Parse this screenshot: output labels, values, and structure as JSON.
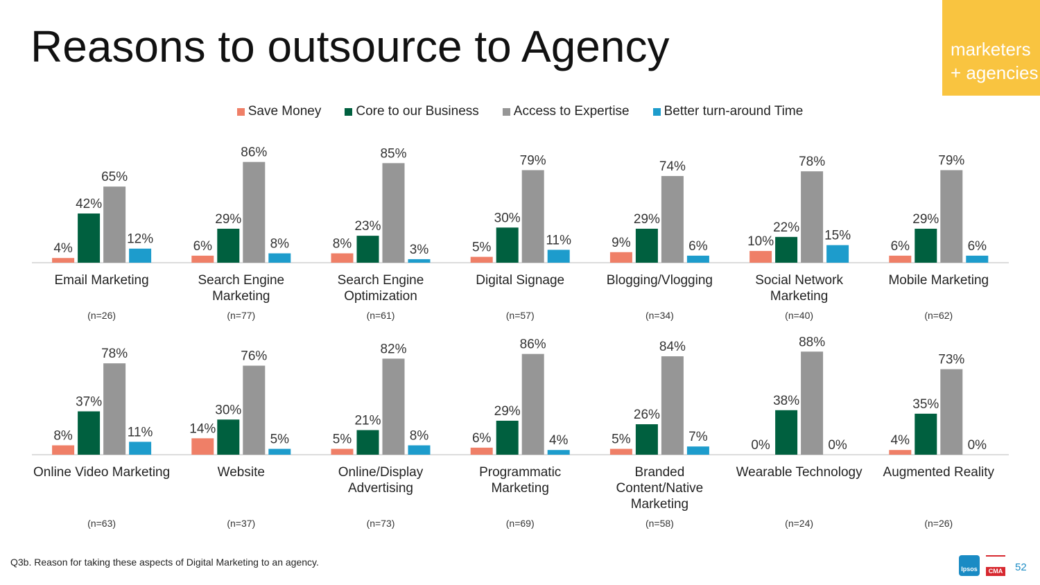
{
  "title": "Reasons to outsource to Agency",
  "badge": {
    "line1": "marketers",
    "line2": "+ agencies"
  },
  "legend": [
    {
      "label": "Save Money",
      "color": "#ef7f67"
    },
    {
      "label": "Core to our Business",
      "color": "#00603f"
    },
    {
      "label": "Access to Expertise",
      "color": "#969696"
    },
    {
      "label": "Better turn-around Time",
      "color": "#1d9ccc"
    }
  ],
  "chart_data": [
    {
      "type": "bar",
      "categories": [
        [
          "Email Marketing"
        ],
        [
          "Search Engine",
          "Marketing"
        ],
        [
          "Search Engine",
          "Optimization"
        ],
        [
          "Digital Signage"
        ],
        [
          "Blogging/Vlogging"
        ],
        [
          "Social Network",
          "Marketing"
        ],
        [
          "Mobile Marketing"
        ]
      ],
      "sample_sizes": [
        "(n=26)",
        "(n=77)",
        "(n=61)",
        "(n=57)",
        "(n=34)",
        "(n=40)",
        "(n=62)"
      ],
      "series": [
        {
          "name": "Save Money",
          "values": [
            4,
            6,
            8,
            5,
            9,
            10,
            6
          ]
        },
        {
          "name": "Core to our Business",
          "values": [
            42,
            29,
            23,
            30,
            29,
            22,
            29
          ]
        },
        {
          "name": "Access to Expertise",
          "values": [
            65,
            86,
            85,
            79,
            74,
            78,
            79
          ]
        },
        {
          "name": "Better turn-around Time",
          "values": [
            12,
            8,
            3,
            11,
            6,
            15,
            6
          ]
        }
      ],
      "unit": "%",
      "ylim": [
        0,
        100
      ]
    },
    {
      "type": "bar",
      "categories": [
        [
          "Online Video Marketing"
        ],
        [
          "Website"
        ],
        [
          "Online/Display",
          "Advertising"
        ],
        [
          "Programmatic",
          "Marketing"
        ],
        [
          "Branded",
          "Content/Native",
          "Marketing"
        ],
        [
          "Wearable Technology"
        ],
        [
          "Augmented Reality"
        ]
      ],
      "sample_sizes": [
        "(n=63)",
        "(n=37)",
        "(n=73)",
        "(n=69)",
        "(n=58)",
        "(n=24)",
        "(n=26)"
      ],
      "series": [
        {
          "name": "Save Money",
          "values": [
            8,
            14,
            5,
            6,
            5,
            0,
            4
          ]
        },
        {
          "name": "Core to our Business",
          "values": [
            37,
            30,
            21,
            29,
            26,
            38,
            35
          ]
        },
        {
          "name": "Access to Expertise",
          "values": [
            78,
            76,
            82,
            86,
            84,
            88,
            73
          ]
        },
        {
          "name": "Better turn-around Time",
          "values": [
            11,
            5,
            8,
            4,
            7,
            0,
            0
          ]
        }
      ],
      "unit": "%",
      "ylim": [
        0,
        100
      ]
    }
  ],
  "footnote": "Q3b. Reason for taking these aspects of Digital Marketing to an agency.",
  "logos": {
    "ipsos": "Ipsos",
    "cma": "CMA"
  },
  "page_number": "52"
}
